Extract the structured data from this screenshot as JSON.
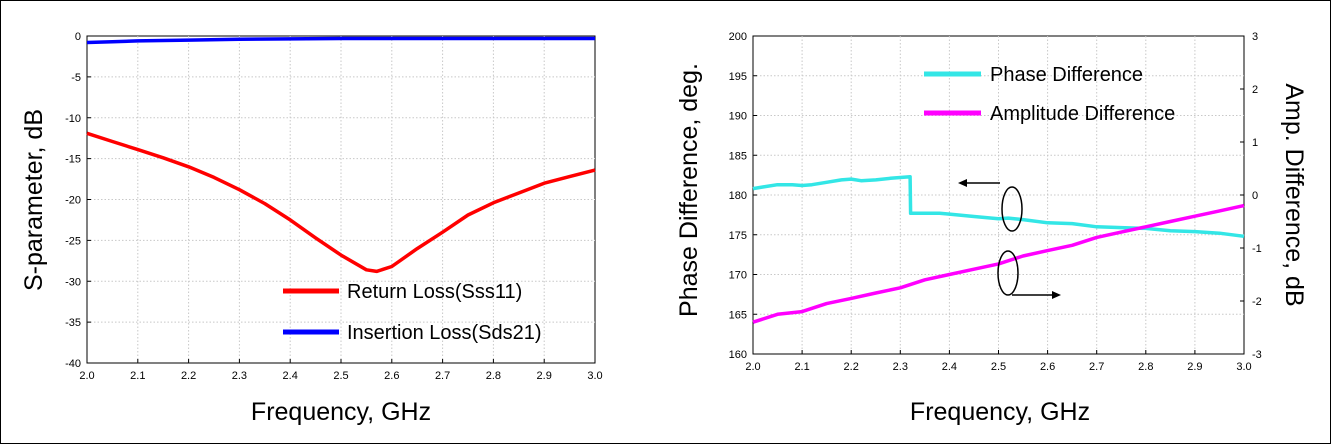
{
  "chart_data": [
    {
      "type": "line",
      "xlabel": "Frequency, GHz",
      "ylabel": "S-parameter, dB",
      "xlim": [
        2.0,
        3.0
      ],
      "ylim": [
        -40,
        0
      ],
      "xticks": [
        "2.0",
        "2.1",
        "2.2",
        "2.3",
        "2.4",
        "2.5",
        "2.6",
        "2.7",
        "2.8",
        "2.9",
        "3.0"
      ],
      "yticks": [
        "0",
        "-5",
        "-10",
        "-15",
        "-20",
        "-25",
        "-30",
        "-35",
        "-40"
      ],
      "grid": true,
      "legend_position": "bottom-right",
      "series": [
        {
          "name": "Return Loss(Sss11)",
          "color": "#ff0000",
          "x": [
            2.0,
            2.05,
            2.1,
            2.15,
            2.2,
            2.25,
            2.3,
            2.35,
            2.4,
            2.45,
            2.5,
            2.55,
            2.57,
            2.6,
            2.65,
            2.7,
            2.75,
            2.8,
            2.85,
            2.9,
            2.95,
            3.0
          ],
          "y": [
            -11.9,
            -12.9,
            -13.9,
            -14.9,
            -16.0,
            -17.3,
            -18.8,
            -20.5,
            -22.5,
            -24.7,
            -26.8,
            -28.6,
            -28.8,
            -28.2,
            -26.0,
            -24.0,
            -21.9,
            -20.4,
            -19.2,
            -18.0,
            -17.2,
            -16.4
          ]
        },
        {
          "name": "Insertion Loss(Sds21)",
          "color": "#0000ff",
          "x": [
            2.0,
            2.05,
            2.1,
            2.2,
            2.3,
            2.4,
            2.5,
            2.6,
            2.7,
            2.8,
            2.9,
            3.0
          ],
          "y": [
            -0.8,
            -0.7,
            -0.6,
            -0.5,
            -0.4,
            -0.35,
            -0.3,
            -0.3,
            -0.3,
            -0.3,
            -0.3,
            -0.3
          ]
        }
      ]
    },
    {
      "type": "line",
      "xlabel": "Frequency, GHz",
      "ylabel": "Phase Difference, deg.",
      "y2label": "Amp. Difference, dB",
      "xlim": [
        2.0,
        3.0
      ],
      "ylim": [
        160,
        200
      ],
      "y2lim": [
        -3,
        3
      ],
      "xticks": [
        "2.0",
        "2.1",
        "2.2",
        "2.3",
        "2.4",
        "2.5",
        "2.6",
        "2.7",
        "2.8",
        "2.9",
        "3.0"
      ],
      "yticks": [
        "200",
        "195",
        "190",
        "185",
        "180",
        "175",
        "170",
        "165",
        "160"
      ],
      "y2ticks": [
        "3",
        "2",
        "1",
        "0",
        "-1",
        "-2",
        "-3"
      ],
      "grid": true,
      "legend_position": "top-right",
      "series": [
        {
          "name": "Phase Difference",
          "color": "#33e6e6",
          "axis": "left",
          "x": [
            2.0,
            2.02,
            2.05,
            2.08,
            2.1,
            2.12,
            2.15,
            2.18,
            2.2,
            2.22,
            2.25,
            2.28,
            2.3,
            2.32,
            2.321,
            2.35,
            2.38,
            2.4,
            2.45,
            2.5,
            2.52,
            2.55,
            2.6,
            2.65,
            2.7,
            2.75,
            2.8,
            2.85,
            2.9,
            2.95,
            3.0
          ],
          "y": [
            180.8,
            181.0,
            181.3,
            181.3,
            181.2,
            181.3,
            181.6,
            181.9,
            182.0,
            181.8,
            181.9,
            182.1,
            182.2,
            182.3,
            177.7,
            177.7,
            177.7,
            177.6,
            177.3,
            177.0,
            177.1,
            176.9,
            176.5,
            176.4,
            176.0,
            175.9,
            175.8,
            175.5,
            175.4,
            175.2,
            174.8
          ]
        },
        {
          "name": "Amplitude Difference",
          "color": "#ff00ff",
          "axis": "right",
          "x": [
            2.0,
            2.05,
            2.1,
            2.15,
            2.2,
            2.25,
            2.3,
            2.35,
            2.4,
            2.45,
            2.5,
            2.55,
            2.6,
            2.65,
            2.7,
            2.75,
            2.8,
            2.85,
            2.9,
            2.95,
            3.0
          ],
          "y": [
            -2.4,
            -2.25,
            -2.2,
            -2.05,
            -1.95,
            -1.85,
            -1.75,
            -1.6,
            -1.5,
            -1.4,
            -1.3,
            -1.15,
            -1.05,
            -0.95,
            -0.8,
            -0.7,
            -0.6,
            -0.5,
            -0.4,
            -0.3,
            -0.2
          ]
        }
      ]
    }
  ]
}
